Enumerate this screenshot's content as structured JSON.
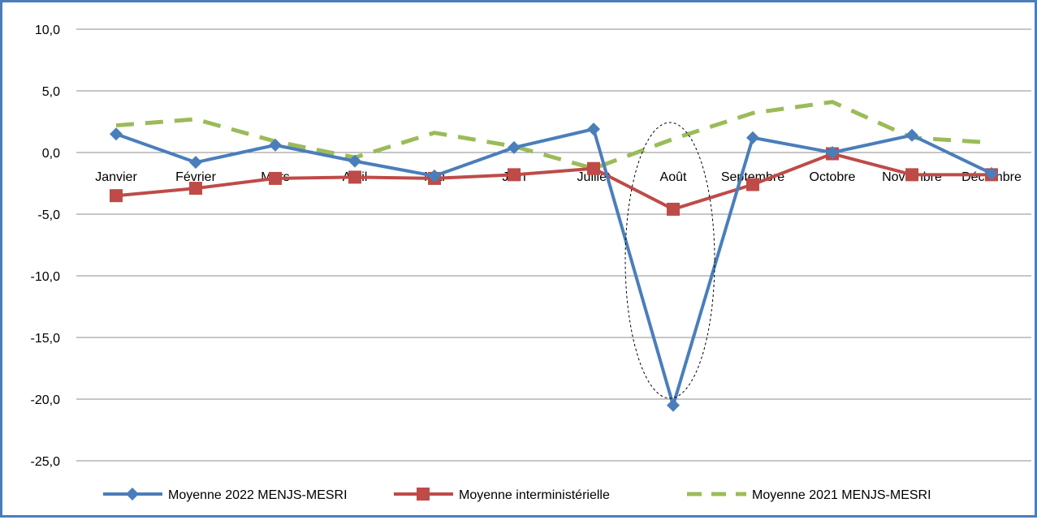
{
  "chart_data": {
    "type": "line",
    "title": "",
    "xlabel": "",
    "ylabel": "",
    "categories": [
      "Janvier",
      "Février",
      "Mars",
      "Avril",
      "Mai",
      "Juin",
      "Juillet",
      "Août",
      "Septembre",
      "Octobre",
      "Novembre",
      "Décembre"
    ],
    "y_ticks": [
      "10,0",
      "5,0",
      "0,0",
      "-5,0",
      "-10,0",
      "-15,0",
      "-20,0",
      "-25,0"
    ],
    "ylim": [
      -25,
      10
    ],
    "grid": "horizontal",
    "legend_position": "bottom",
    "series": [
      {
        "name": "Moyenne 2022 MENJS-MESRI",
        "color": "#4a7ebb",
        "marker": "diamond",
        "line_style": "solid",
        "values": [
          1.5,
          -0.8,
          0.6,
          -0.7,
          -1.9,
          0.4,
          1.9,
          -20.5,
          1.2,
          0.0,
          1.4,
          -1.7
        ]
      },
      {
        "name": "Moyenne interministérielle",
        "color": "#be4b48",
        "marker": "square",
        "line_style": "solid",
        "values": [
          -3.5,
          -2.9,
          -2.1,
          -2.0,
          -2.1,
          -1.8,
          -1.3,
          -4.6,
          -2.6,
          -0.1,
          -1.8,
          -1.8
        ]
      },
      {
        "name": "Moyenne 2021 MENJS-MESRI",
        "color": "#9bbb59",
        "marker": "none",
        "line_style": "dashed",
        "values": [
          2.2,
          2.7,
          0.9,
          -0.4,
          1.6,
          0.5,
          -1.3,
          1.1,
          3.2,
          4.1,
          1.2,
          0.8
        ]
      }
    ],
    "annotations": [
      {
        "type": "ellipse",
        "category": "Août",
        "style": "dotted",
        "color": "#000000"
      }
    ]
  }
}
